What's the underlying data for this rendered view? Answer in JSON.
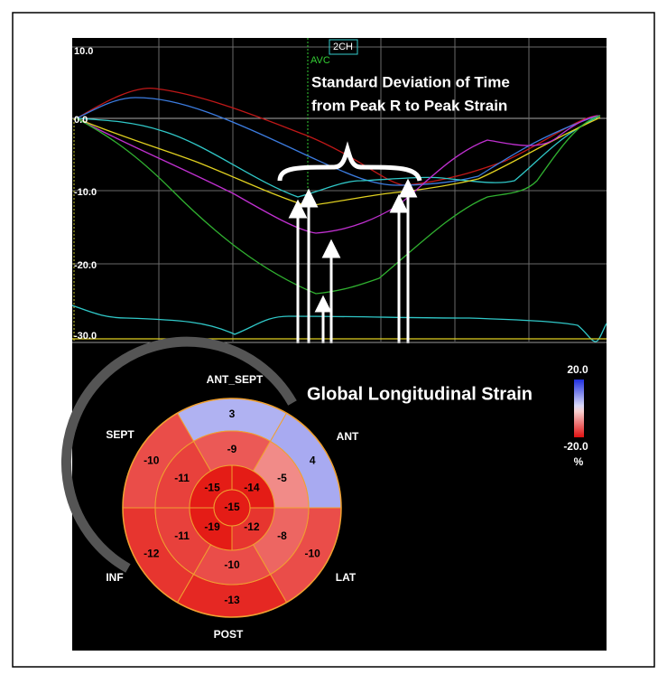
{
  "strain_plot": {
    "view_label": "2CH",
    "avc_label": "AVC",
    "annotation": [
      "Standard Deviation of Time",
      "from Peak R to Peak Strain"
    ],
    "y_labels": [
      "10.0",
      "0.0",
      "-10.0",
      "-20.0",
      "-30.0"
    ]
  },
  "bullseye": {
    "title": "Global Longitudinal Strain",
    "wall_labels": [
      "ANT_SEPT",
      "ANT",
      "LAT",
      "POST",
      "INF",
      "SEPT"
    ],
    "basal": [
      3,
      4,
      -10,
      -13,
      -12,
      -10
    ],
    "mid": [
      -9,
      -5,
      -8,
      -10,
      -11,
      -11
    ],
    "apical": [
      -14,
      -12,
      -19,
      -15
    ],
    "apex": -15,
    "scale_max": "20.0",
    "scale_min": "-20.0",
    "scale_unit": "%"
  }
}
